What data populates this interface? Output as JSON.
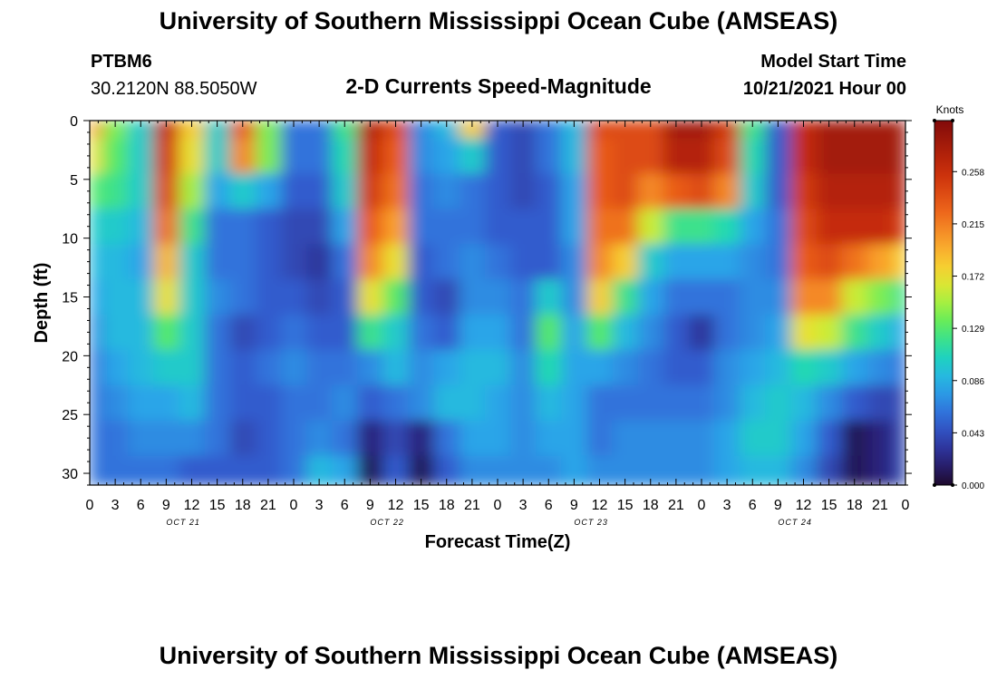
{
  "header": {
    "title": "University of Southern Mississippi Ocean Cube (AMSEAS)",
    "station_id": "PTBM6",
    "station_coords": "30.2120N  88.5050W",
    "subtitle": "2-D Currents Speed-Magnitude",
    "model_start_label": "Model Start Time",
    "model_start_value": "10/21/2021 Hour 00"
  },
  "footer": {
    "title": "University of Southern Mississippi Ocean Cube (AMSEAS)"
  },
  "chart_data": {
    "type": "heatmap",
    "title": "2-D Currents Speed-Magnitude",
    "xlabel": "Forecast Time(Z)",
    "ylabel": "Depth (ft)",
    "x_range_hours": [
      0,
      96
    ],
    "y_range_ft": [
      0,
      31
    ],
    "x_tick_labels": [
      "0",
      "3",
      "6",
      "9",
      "12",
      "15",
      "18",
      "21",
      "0",
      "3",
      "6",
      "9",
      "12",
      "15",
      "18",
      "21",
      "0",
      "3",
      "6",
      "9",
      "12",
      "15",
      "18",
      "21",
      "0",
      "3",
      "6",
      "9",
      "12",
      "15",
      "18",
      "21",
      "0"
    ],
    "y_tick_values": [
      0,
      5,
      10,
      15,
      20,
      25,
      30
    ],
    "y_tick_labels": [
      "0",
      "5",
      "10",
      "15",
      "20",
      "25",
      "30"
    ],
    "day_labels": [
      {
        "text": "OCT 21",
        "hour": 11
      },
      {
        "text": "OCT 22",
        "hour": 35
      },
      {
        "text": "OCT 23",
        "hour": 59
      },
      {
        "text": "OCT 24",
        "hour": 83
      }
    ],
    "colorbar": {
      "units_label": "Knots",
      "range": [
        0,
        0.3
      ],
      "tick_values": [
        0.0,
        0.043,
        0.086,
        0.129,
        0.172,
        0.215,
        0.258
      ],
      "tick_labels": [
        "0.000",
        "0.043",
        "0.086",
        "0.129",
        "0.172",
        "0.215",
        "0.258"
      ]
    },
    "depths_ft": [
      0,
      3,
      6,
      9,
      12,
      15,
      18,
      21,
      24,
      27,
      30
    ],
    "times_hours": [
      0,
      3,
      6,
      9,
      12,
      15,
      18,
      21,
      24,
      27,
      30,
      33,
      36,
      39,
      42,
      45,
      48,
      51,
      54,
      57,
      60,
      63,
      66,
      69,
      72,
      75,
      78,
      81,
      84,
      87,
      90,
      93,
      96
    ],
    "speed_knots": [
      [
        0.2,
        0.14,
        0.1,
        0.26,
        0.18,
        0.1,
        0.23,
        0.14,
        0.06,
        0.06,
        0.12,
        0.27,
        0.24,
        0.07,
        0.09,
        0.18,
        0.05,
        0.04,
        0.06,
        0.09,
        0.24,
        0.24,
        0.24,
        0.28,
        0.28,
        0.25,
        0.12,
        0.05,
        0.26,
        0.28,
        0.28,
        0.28,
        0.28
      ],
      [
        0.17,
        0.13,
        0.1,
        0.25,
        0.17,
        0.1,
        0.21,
        0.14,
        0.06,
        0.06,
        0.11,
        0.26,
        0.23,
        0.07,
        0.08,
        0.1,
        0.05,
        0.04,
        0.06,
        0.09,
        0.23,
        0.24,
        0.24,
        0.27,
        0.27,
        0.24,
        0.11,
        0.05,
        0.26,
        0.28,
        0.28,
        0.28,
        0.28
      ],
      [
        0.13,
        0.12,
        0.1,
        0.24,
        0.15,
        0.08,
        0.1,
        0.08,
        0.05,
        0.05,
        0.1,
        0.25,
        0.22,
        0.06,
        0.07,
        0.06,
        0.05,
        0.04,
        0.05,
        0.08,
        0.23,
        0.24,
        0.21,
        0.23,
        0.24,
        0.21,
        0.1,
        0.05,
        0.25,
        0.27,
        0.27,
        0.27,
        0.27
      ],
      [
        0.1,
        0.1,
        0.09,
        0.22,
        0.12,
        0.06,
        0.06,
        0.05,
        0.04,
        0.04,
        0.08,
        0.23,
        0.2,
        0.06,
        0.06,
        0.06,
        0.05,
        0.05,
        0.05,
        0.08,
        0.22,
        0.22,
        0.16,
        0.12,
        0.12,
        0.11,
        0.08,
        0.06,
        0.24,
        0.26,
        0.26,
        0.26,
        0.25
      ],
      [
        0.09,
        0.09,
        0.08,
        0.19,
        0.1,
        0.06,
        0.06,
        0.05,
        0.04,
        0.03,
        0.06,
        0.21,
        0.17,
        0.05,
        0.06,
        0.07,
        0.06,
        0.05,
        0.05,
        0.07,
        0.21,
        0.18,
        0.1,
        0.08,
        0.08,
        0.08,
        0.07,
        0.06,
        0.23,
        0.24,
        0.22,
        0.2,
        0.18
      ],
      [
        0.08,
        0.09,
        0.09,
        0.17,
        0.1,
        0.07,
        0.06,
        0.05,
        0.05,
        0.04,
        0.05,
        0.17,
        0.13,
        0.05,
        0.04,
        0.07,
        0.07,
        0.06,
        0.1,
        0.07,
        0.18,
        0.12,
        0.08,
        0.06,
        0.06,
        0.06,
        0.07,
        0.07,
        0.21,
        0.21,
        0.16,
        0.14,
        0.12
      ],
      [
        0.07,
        0.09,
        0.09,
        0.13,
        0.1,
        0.06,
        0.04,
        0.05,
        0.06,
        0.05,
        0.05,
        0.12,
        0.1,
        0.06,
        0.05,
        0.08,
        0.08,
        0.06,
        0.13,
        0.08,
        0.13,
        0.09,
        0.07,
        0.05,
        0.03,
        0.06,
        0.07,
        0.08,
        0.17,
        0.16,
        0.12,
        0.1,
        0.08
      ],
      [
        0.06,
        0.08,
        0.09,
        0.1,
        0.1,
        0.06,
        0.05,
        0.06,
        0.07,
        0.06,
        0.06,
        0.07,
        0.09,
        0.07,
        0.08,
        0.09,
        0.09,
        0.07,
        0.11,
        0.08,
        0.08,
        0.07,
        0.06,
        0.05,
        0.05,
        0.07,
        0.08,
        0.09,
        0.11,
        0.1,
        0.08,
        0.07,
        0.06
      ],
      [
        0.06,
        0.07,
        0.08,
        0.08,
        0.09,
        0.06,
        0.05,
        0.05,
        0.06,
        0.06,
        0.07,
        0.05,
        0.06,
        0.07,
        0.09,
        0.09,
        0.08,
        0.07,
        0.09,
        0.08,
        0.06,
        0.06,
        0.06,
        0.06,
        0.06,
        0.07,
        0.09,
        0.1,
        0.09,
        0.07,
        0.05,
        0.04,
        0.04
      ],
      [
        0.06,
        0.06,
        0.07,
        0.07,
        0.07,
        0.06,
        0.04,
        0.05,
        0.06,
        0.07,
        0.06,
        0.02,
        0.04,
        0.02,
        0.06,
        0.08,
        0.08,
        0.07,
        0.08,
        0.08,
        0.06,
        0.07,
        0.07,
        0.07,
        0.07,
        0.08,
        0.1,
        0.1,
        0.08,
        0.05,
        0.01,
        0.02,
        0.04
      ],
      [
        0.06,
        0.06,
        0.06,
        0.06,
        0.05,
        0.05,
        0.05,
        0.05,
        0.06,
        0.09,
        0.08,
        0.01,
        0.05,
        0.01,
        0.05,
        0.07,
        0.07,
        0.07,
        0.07,
        0.08,
        0.07,
        0.07,
        0.07,
        0.07,
        0.07,
        0.08,
        0.09,
        0.09,
        0.07,
        0.04,
        0.01,
        0.02,
        0.04
      ]
    ]
  }
}
